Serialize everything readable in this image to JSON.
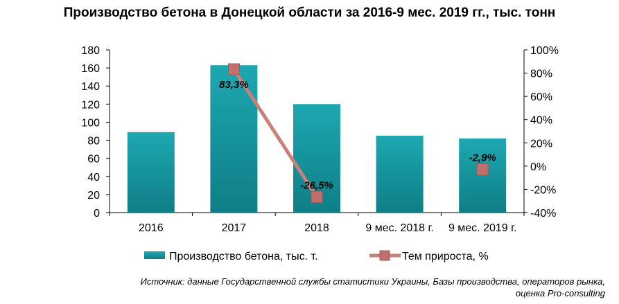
{
  "chart_data": {
    "type": "bar",
    "title": "Производство  бетона в Донецкой области за 2016-9 мес.  2019 гг., тыс. тонн",
    "categories": [
      "2016",
      "2017",
      "2018",
      "9 мес. 2018 г.",
      "9 мес. 2019 г."
    ],
    "series": [
      {
        "name": "Производство бетона, тыс. т.",
        "kind": "bar",
        "axis": "left",
        "values": [
          89,
          163,
          120,
          85,
          82
        ],
        "color": "#1A9CA6"
      },
      {
        "name": "Тем прироста, %",
        "kind": "line",
        "axis": "right",
        "values": [
          null,
          83.3,
          -26.5,
          null,
          -2.9
        ],
        "labels": [
          "",
          "83,3%",
          "-26,5%",
          "",
          "-2,9%"
        ],
        "color": "#C97F7A"
      }
    ],
    "ylim": [
      0,
      180
    ],
    "yticks": [
      "0",
      "20",
      "40",
      "60",
      "80",
      "100",
      "120",
      "140",
      "160",
      "180"
    ],
    "y2lim": [
      -40,
      100
    ],
    "y2ticks": [
      "-40%",
      "-20%",
      "0%",
      "20%",
      "40%",
      "60%",
      "80%",
      "100%"
    ],
    "legend_position": "bottom",
    "grid": false
  },
  "source": {
    "line1": "Источник: данные  Государственной службы статистики Украины, Базы производства, операторов  рынка,",
    "line2": "оценка Pro-consulting"
  }
}
